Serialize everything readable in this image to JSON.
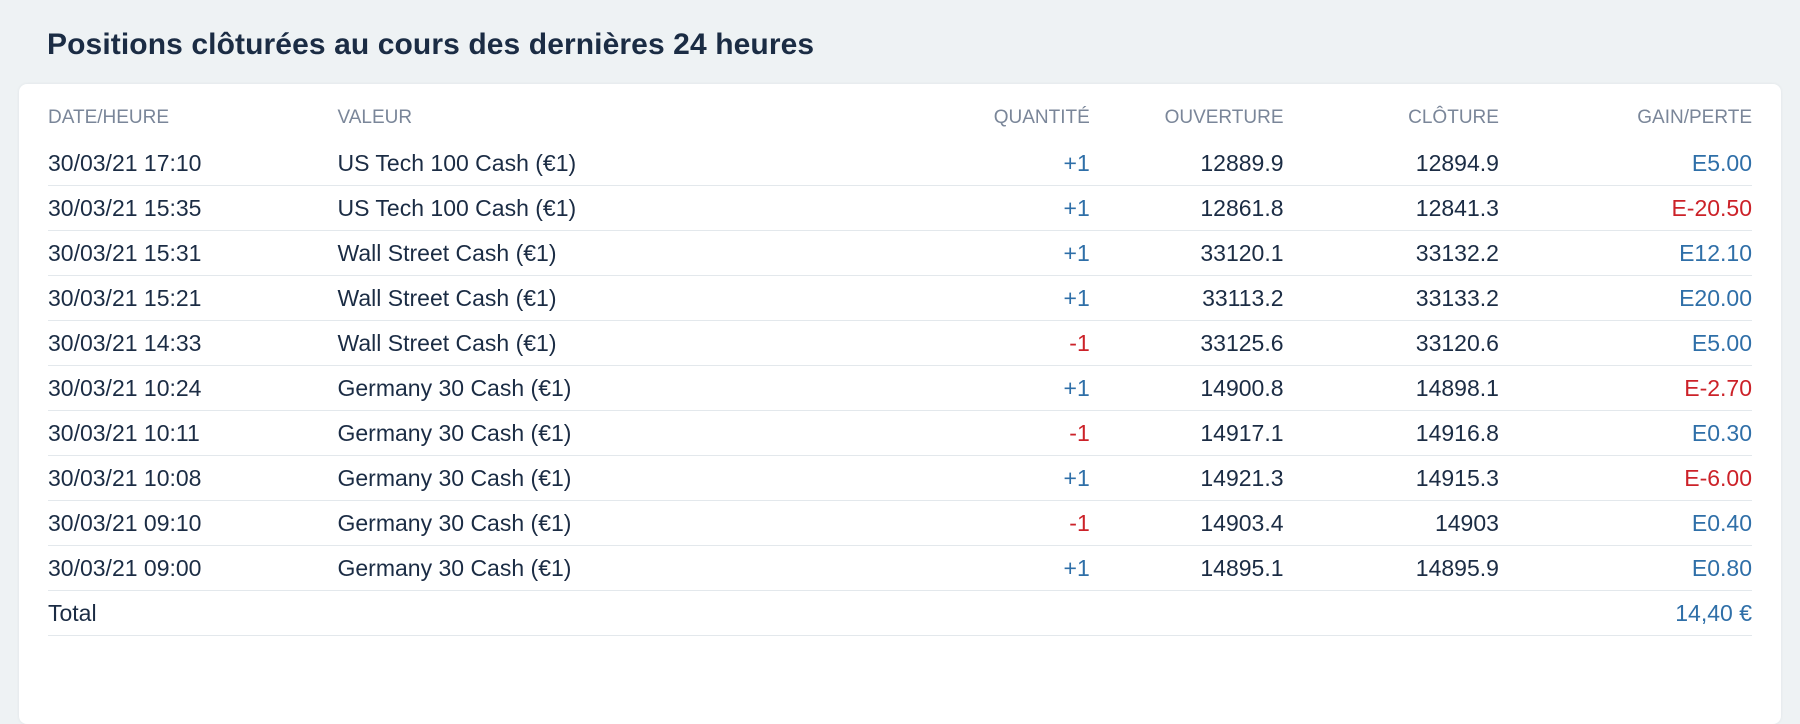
{
  "title": "Positions clôturées au cours des dernières 24 heures",
  "columns": {
    "date": "DATE/HEURE",
    "value": "VALEUR",
    "quantity": "QUANTITÉ",
    "open": "OUVERTURE",
    "close": "CLÔTURE",
    "gain": "GAIN/PERTE"
  },
  "rows": [
    {
      "date": "30/03/21 17:10",
      "instrument": "US Tech 100 Cash (€1)",
      "quantity": "+1",
      "open": "12889.9",
      "close": "12894.9",
      "gain": "E5.00"
    },
    {
      "date": "30/03/21 15:35",
      "instrument": "US Tech 100 Cash (€1)",
      "quantity": "+1",
      "open": "12861.8",
      "close": "12841.3",
      "gain": "E-20.50"
    },
    {
      "date": "30/03/21 15:31",
      "instrument": "Wall Street Cash (€1)",
      "quantity": "+1",
      "open": "33120.1",
      "close": "33132.2",
      "gain": "E12.10"
    },
    {
      "date": "30/03/21 15:21",
      "instrument": "Wall Street Cash (€1)",
      "quantity": "+1",
      "open": "33113.2",
      "close": "33133.2",
      "gain": "E20.00"
    },
    {
      "date": "30/03/21 14:33",
      "instrument": "Wall Street Cash (€1)",
      "quantity": "-1",
      "open": "33125.6",
      "close": "33120.6",
      "gain": "E5.00"
    },
    {
      "date": "30/03/21 10:24",
      "instrument": "Germany 30 Cash (€1)",
      "quantity": "+1",
      "open": "14900.8",
      "close": "14898.1",
      "gain": "E-2.70"
    },
    {
      "date": "30/03/21 10:11",
      "instrument": "Germany 30 Cash (€1)",
      "quantity": "-1",
      "open": "14917.1",
      "close": "14916.8",
      "gain": "E0.30"
    },
    {
      "date": "30/03/21 10:08",
      "instrument": "Germany 30 Cash (€1)",
      "quantity": "+1",
      "open": "14921.3",
      "close": "14915.3",
      "gain": "E-6.00"
    },
    {
      "date": "30/03/21 09:10",
      "instrument": "Germany 30 Cash (€1)",
      "quantity": "-1",
      "open": "14903.4",
      "close": "14903",
      "gain": "E0.40"
    },
    {
      "date": "30/03/21 09:00",
      "instrument": "Germany 30 Cash (€1)",
      "quantity": "+1",
      "open": "14895.1",
      "close": "14895.9",
      "gain": "E0.80"
    }
  ],
  "total": {
    "label": "Total",
    "value": "14,40 €"
  },
  "colors": {
    "positive": "#2f6fa8",
    "negative": "#cc2229",
    "text": "#1b2c44",
    "header": "#7a8699",
    "background": "#eef2f4"
  }
}
